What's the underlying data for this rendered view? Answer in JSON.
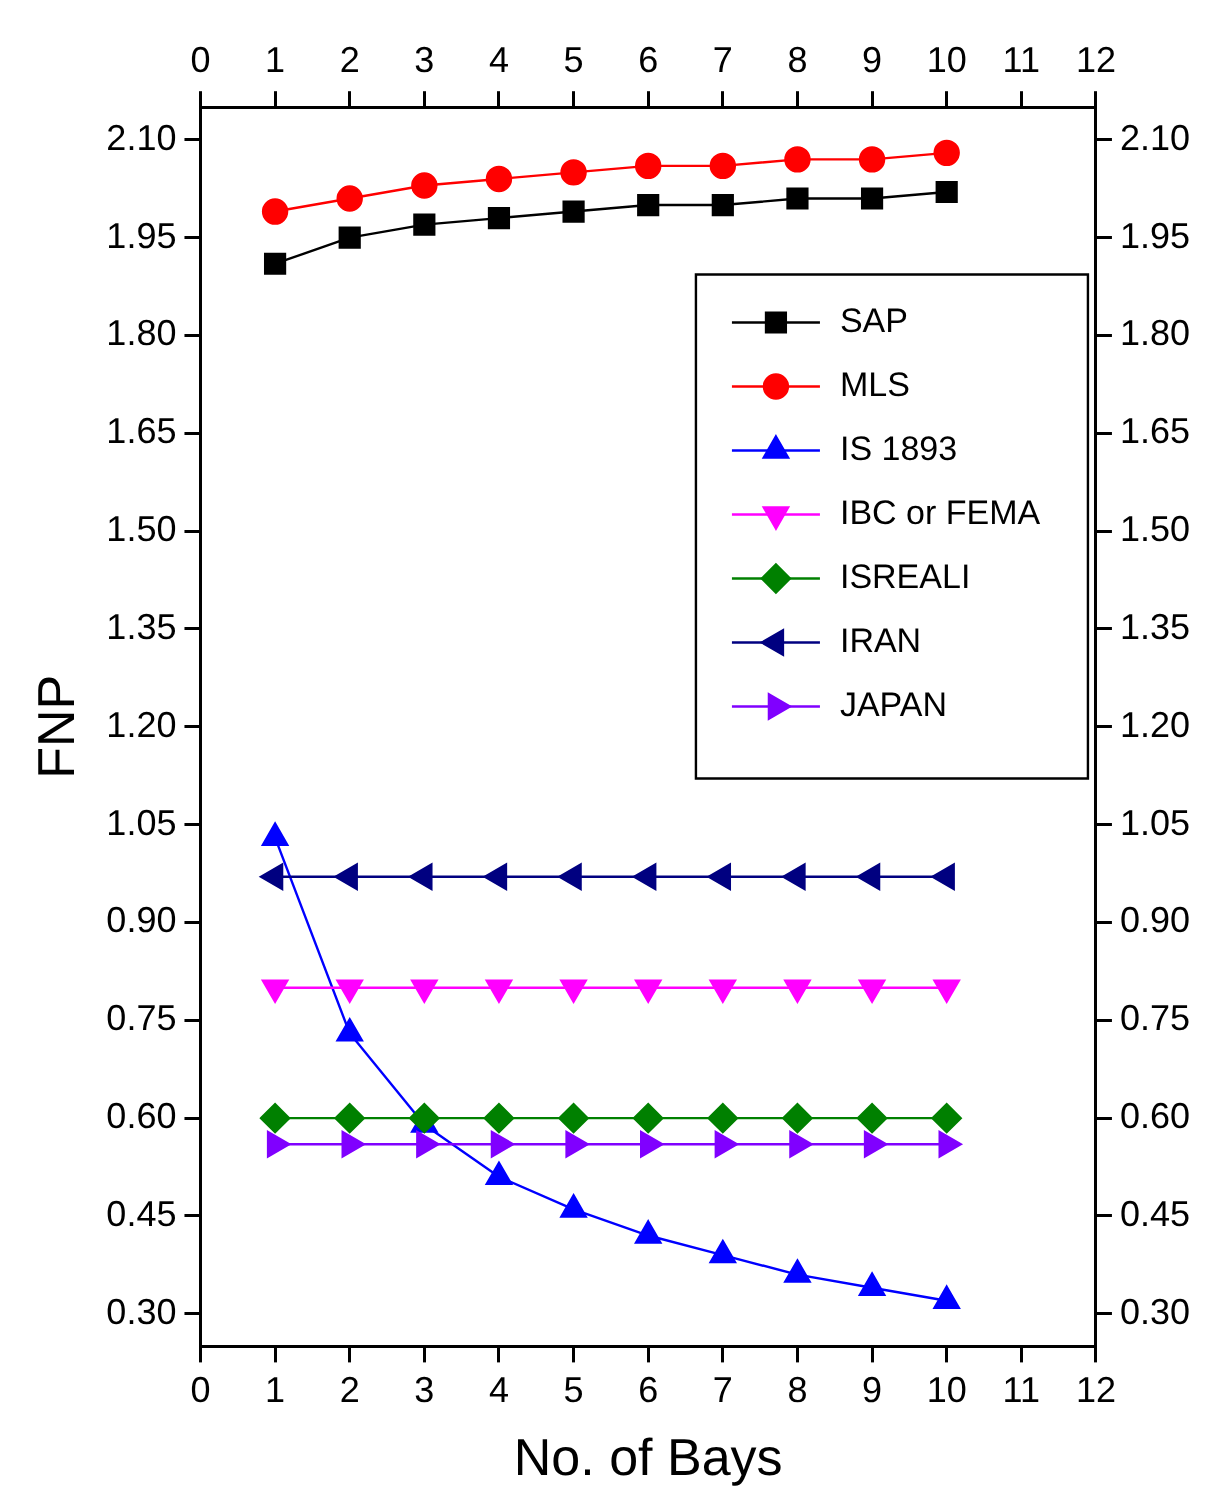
{
  "chart_data": {
    "type": "line",
    "xlabel": "No. of Bays",
    "ylabel": "FNP",
    "x": [
      1,
      2,
      3,
      4,
      5,
      6,
      7,
      8,
      9,
      10
    ],
    "series": [
      {
        "name": "SAP",
        "color": "#000000",
        "marker": "square",
        "values": [
          1.91,
          1.95,
          1.97,
          1.98,
          1.99,
          2.0,
          2.0,
          2.01,
          2.01,
          2.02
        ]
      },
      {
        "name": "MLS",
        "color": "#ff0000",
        "marker": "circle",
        "values": [
          1.99,
          2.01,
          2.03,
          2.04,
          2.05,
          2.06,
          2.06,
          2.07,
          2.07,
          2.08
        ]
      },
      {
        "name": "IS 1893",
        "color": "#0000ff",
        "marker": "triangle",
        "values": [
          1.03,
          0.73,
          0.59,
          0.51,
          0.46,
          0.42,
          0.39,
          0.36,
          0.34,
          0.32
        ]
      },
      {
        "name": "IBC or FEMA",
        "color": "#ff00ff",
        "marker": "triangle-down",
        "values": [
          0.8,
          0.8,
          0.8,
          0.8,
          0.8,
          0.8,
          0.8,
          0.8,
          0.8,
          0.8
        ]
      },
      {
        "name": "ISREALI",
        "color": "#008000",
        "marker": "diamond",
        "values": [
          0.6,
          0.6,
          0.6,
          0.6,
          0.6,
          0.6,
          0.6,
          0.6,
          0.6,
          0.6
        ]
      },
      {
        "name": "IRAN",
        "color": "#000080",
        "marker": "triangle-left",
        "values": [
          0.97,
          0.97,
          0.97,
          0.97,
          0.97,
          0.97,
          0.97,
          0.97,
          0.97,
          0.97
        ]
      },
      {
        "name": "JAPAN",
        "color": "#8000ff",
        "marker": "triangle-right",
        "values": [
          0.56,
          0.56,
          0.56,
          0.56,
          0.56,
          0.56,
          0.56,
          0.56,
          0.56,
          0.56
        ]
      }
    ],
    "xlim": [
      0,
      12
    ],
    "xticks": [
      0,
      1,
      2,
      3,
      4,
      5,
      6,
      7,
      8,
      9,
      10,
      11,
      12
    ],
    "x2lim": [
      0,
      12
    ],
    "x2ticks": [
      0,
      1,
      2,
      3,
      4,
      5,
      6,
      7,
      8,
      9,
      10,
      11,
      12
    ],
    "ylim": [
      0.25,
      2.15
    ],
    "yticks": [
      {
        "value": 0.3,
        "label": "0.30"
      },
      {
        "value": 0.45,
        "label": "0.45"
      },
      {
        "value": 0.6,
        "label": "0.60"
      },
      {
        "value": 0.75,
        "label": "0.75"
      },
      {
        "value": 0.9,
        "label": "0.90"
      },
      {
        "value": 1.05,
        "label": "1.05"
      },
      {
        "value": 1.2,
        "label": "1.20"
      },
      {
        "value": 1.35,
        "label": "1.35"
      },
      {
        "value": 1.5,
        "label": "1.50"
      },
      {
        "value": 1.65,
        "label": "1.65"
      },
      {
        "value": 1.8,
        "label": "1.80"
      },
      {
        "value": 1.95,
        "label": "1.95"
      },
      {
        "value": 2.1,
        "label": "2.10"
      }
    ],
    "y2lim": [
      0.25,
      2.15
    ],
    "y2ticks": [
      {
        "value": 0.3,
        "label": "0.30"
      },
      {
        "value": 0.45,
        "label": "0.45"
      },
      {
        "value": 0.6,
        "label": "0.60"
      },
      {
        "value": 0.75,
        "label": "0.75"
      },
      {
        "value": 0.9,
        "label": "0.90"
      },
      {
        "value": 1.05,
        "label": "1.05"
      },
      {
        "value": 1.2,
        "label": "1.20"
      },
      {
        "value": 1.35,
        "label": "1.35"
      },
      {
        "value": 1.5,
        "label": "1.50"
      },
      {
        "value": 1.65,
        "label": "1.65"
      },
      {
        "value": 1.8,
        "label": "1.80"
      },
      {
        "value": 1.95,
        "label": "1.95"
      },
      {
        "value": 2.1,
        "label": "2.10"
      }
    ],
    "grid": false,
    "legend": "right",
    "line_style": "solid"
  }
}
